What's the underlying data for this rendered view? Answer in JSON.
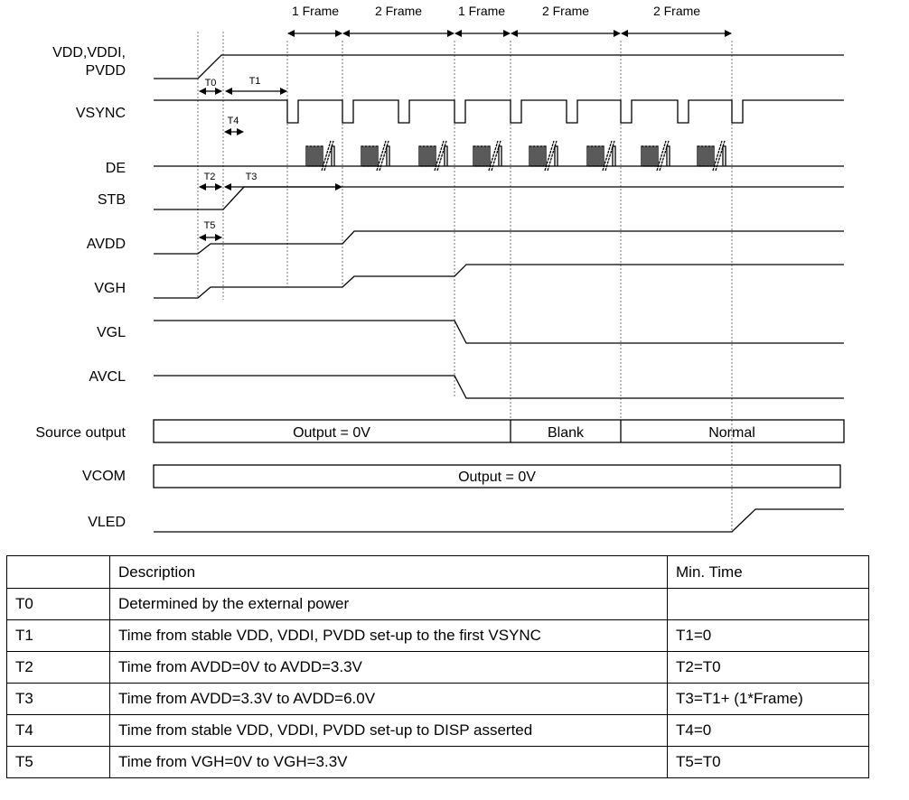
{
  "signals": {
    "vdd_line1": "VDD,VDDI,",
    "vdd_line2": "PVDD",
    "vsync": "VSYNC",
    "de": "DE",
    "stb": "STB",
    "avdd": "AVDD",
    "vgh": "VGH",
    "vgl": "VGL",
    "avcl": "AVCL",
    "source_output": "Source output",
    "vcom": "VCOM",
    "vled": "VLED"
  },
  "frames": [
    "1 Frame",
    "2 Frame",
    "1 Frame",
    "2 Frame",
    "2 Frame"
  ],
  "timing_labels": {
    "t0": "T0",
    "t1": "T1",
    "t2": "T2",
    "t3": "T3",
    "t4": "T4",
    "t5": "T5"
  },
  "source_output_states": [
    "Output = 0V",
    "Blank",
    "Normal"
  ],
  "vcom_state": "Output = 0V",
  "table": {
    "headers": [
      "",
      "Description",
      "Min. Time"
    ],
    "rows": [
      [
        "T0",
        "Determined by the external power",
        ""
      ],
      [
        "T1",
        "Time from stable VDD, VDDI, PVDD set-up to the first VSYNC",
        "T1=0"
      ],
      [
        "T2",
        "Time from AVDD=0V to AVDD=3.3V",
        "T2=T0"
      ],
      [
        "T3",
        "Time from AVDD=3.3V to AVDD=6.0V",
        "T3=T1+ (1*Frame)"
      ],
      [
        "T4",
        "Time from stable VDD, VDDI, PVDD set-up to DISP asserted",
        "T4=0"
      ],
      [
        "T5",
        "Time from VGH=0V to VGH=3.3V",
        "T5=T0"
      ]
    ]
  }
}
